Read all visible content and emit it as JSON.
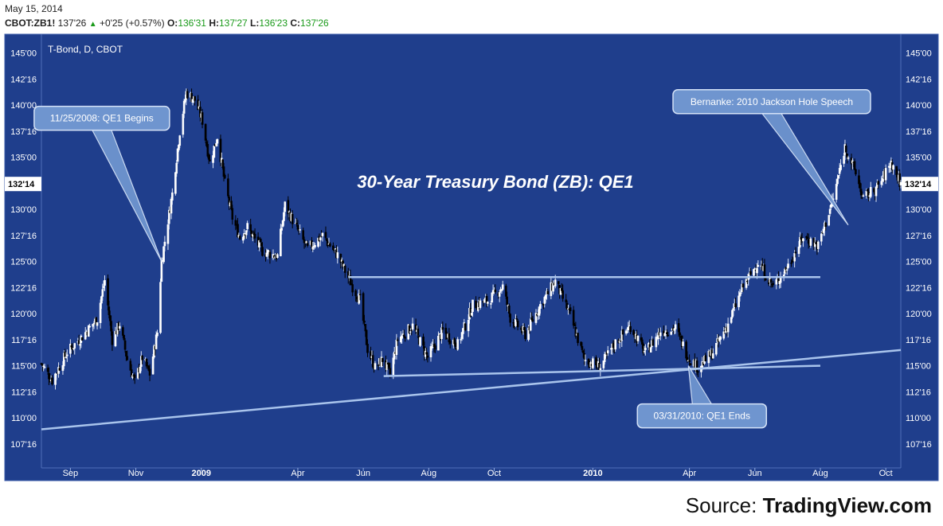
{
  "header": {
    "date": "May 15, 2014",
    "symbol": "CBOT:ZB1!",
    "last": "137'26",
    "change": "+0'25 (+0.57%)",
    "open_label": "O:",
    "open": "136'31",
    "high_label": "H:",
    "high": "137'27",
    "low_label": "L:",
    "low": "136'23",
    "close_label": "C:",
    "close": "137'26"
  },
  "colors": {
    "background": "#1f3e8c",
    "up_candle": "#ffffff",
    "down_candle": "#000000",
    "annotation_line": "#a9c4ec",
    "callout_fill": "#6f95cf",
    "header_up": "#1a9a1a"
  },
  "source": {
    "prefix": "Source: ",
    "brand": "TradingView.com"
  },
  "chart_data": {
    "type": "candlestick",
    "instrument_label": "T-Bond, D, CBOT",
    "title": "30-Year Treasury Bond (ZB): QE1",
    "current_price_label": "132'14",
    "current_price": 132.4375,
    "x": {
      "start": "2008-08-05",
      "end": "2010-10-15"
    },
    "y_range": [
      105.5,
      146.5
    ],
    "y_ticks": [
      {
        "value": 107.5,
        "label": "107'16"
      },
      {
        "value": 110.0,
        "label": "110'00"
      },
      {
        "value": 112.5,
        "label": "112'16"
      },
      {
        "value": 115.0,
        "label": "115'00"
      },
      {
        "value": 117.5,
        "label": "117'16"
      },
      {
        "value": 120.0,
        "label": "120'00"
      },
      {
        "value": 122.5,
        "label": "122'16"
      },
      {
        "value": 125.0,
        "label": "125'00"
      },
      {
        "value": 127.5,
        "label": "127'16"
      },
      {
        "value": 130.0,
        "label": "130'00"
      },
      {
        "value": 132.5,
        "label": "132'16"
      },
      {
        "value": 135.0,
        "label": "135'00"
      },
      {
        "value": 137.5,
        "label": "137'16"
      },
      {
        "value": 140.0,
        "label": "140'00"
      },
      {
        "value": 142.5,
        "label": "142'16"
      },
      {
        "value": 145.0,
        "label": "145'00"
      }
    ],
    "x_ticks": [
      {
        "date": "2008-09-01",
        "label": "Sep",
        "bold": false
      },
      {
        "date": "2008-11-01",
        "label": "Nov",
        "bold": false
      },
      {
        "date": "2009-01-01",
        "label": "2009",
        "bold": true
      },
      {
        "date": "2009-04-01",
        "label": "Apr",
        "bold": false
      },
      {
        "date": "2009-06-01",
        "label": "Jun",
        "bold": false
      },
      {
        "date": "2009-08-01",
        "label": "Aug",
        "bold": false
      },
      {
        "date": "2009-10-01",
        "label": "Oct",
        "bold": false
      },
      {
        "date": "2010-01-01",
        "label": "2010",
        "bold": true
      },
      {
        "date": "2010-04-01",
        "label": "Apr",
        "bold": false
      },
      {
        "date": "2010-06-01",
        "label": "Jun",
        "bold": false
      },
      {
        "date": "2010-08-01",
        "label": "Aug",
        "bold": false
      },
      {
        "date": "2010-10-01",
        "label": "Oct",
        "bold": false
      }
    ],
    "price_path": [
      [
        "2008-08-05",
        115.2
      ],
      [
        "2008-08-15",
        113.6
      ],
      [
        "2008-08-29",
        116.3
      ],
      [
        "2008-09-12",
        117.8
      ],
      [
        "2008-09-26",
        119.5
      ],
      [
        "2008-10-03",
        123.2
      ],
      [
        "2008-10-10",
        117.5
      ],
      [
        "2008-10-17",
        119.0
      ],
      [
        "2008-10-24",
        115.6
      ],
      [
        "2008-10-31",
        113.4
      ],
      [
        "2008-11-07",
        115.8
      ],
      [
        "2008-11-14",
        114.2
      ],
      [
        "2008-11-21",
        118.2
      ],
      [
        "2008-11-25",
        125.0
      ],
      [
        "2008-12-05",
        131.5
      ],
      [
        "2008-12-12",
        137.5
      ],
      [
        "2008-12-18",
        141.2
      ],
      [
        "2008-12-26",
        140.5
      ],
      [
        "2009-01-02",
        138.5
      ],
      [
        "2009-01-09",
        134.5
      ],
      [
        "2009-01-16",
        137.0
      ],
      [
        "2009-01-23",
        132.5
      ],
      [
        "2009-01-30",
        129.2
      ],
      [
        "2009-02-06",
        127.3
      ],
      [
        "2009-02-13",
        128.3
      ],
      [
        "2009-02-27",
        126.0
      ],
      [
        "2009-03-13",
        125.5
      ],
      [
        "2009-03-20",
        130.4
      ],
      [
        "2009-03-27",
        129.0
      ],
      [
        "2009-04-10",
        126.2
      ],
      [
        "2009-04-24",
        127.5
      ],
      [
        "2009-05-08",
        125.6
      ],
      [
        "2009-05-22",
        122.6
      ],
      [
        "2009-05-29",
        121.3
      ],
      [
        "2009-06-05",
        116.6
      ],
      [
        "2009-06-12",
        114.8
      ],
      [
        "2009-06-19",
        115.6
      ],
      [
        "2009-06-26",
        114.2
      ],
      [
        "2009-07-03",
        117.5
      ],
      [
        "2009-07-17",
        118.8
      ],
      [
        "2009-07-31",
        115.8
      ],
      [
        "2009-08-14",
        118.3
      ],
      [
        "2009-08-28",
        117.0
      ],
      [
        "2009-09-11",
        120.8
      ],
      [
        "2009-09-25",
        121.2
      ],
      [
        "2009-10-09",
        122.6
      ],
      [
        "2009-10-16",
        119.6
      ],
      [
        "2009-10-30",
        118.0
      ],
      [
        "2009-11-13",
        120.8
      ],
      [
        "2009-11-27",
        123.1
      ],
      [
        "2009-12-11",
        119.8
      ],
      [
        "2009-12-24",
        115.6
      ],
      [
        "2010-01-08",
        114.9
      ],
      [
        "2010-01-22",
        117.2
      ],
      [
        "2010-02-05",
        118.8
      ],
      [
        "2010-02-19",
        116.2
      ],
      [
        "2010-03-05",
        118.3
      ],
      [
        "2010-03-19",
        118.6
      ],
      [
        "2010-03-31",
        115.8
      ],
      [
        "2010-04-09",
        114.8
      ],
      [
        "2010-04-23",
        116.3
      ],
      [
        "2010-05-07",
        119.0
      ],
      [
        "2010-05-21",
        122.6
      ],
      [
        "2010-06-04",
        124.9
      ],
      [
        "2010-06-18",
        122.6
      ],
      [
        "2010-07-02",
        124.6
      ],
      [
        "2010-07-16",
        127.4
      ],
      [
        "2010-07-30",
        126.5
      ],
      [
        "2010-08-13",
        131.0
      ],
      [
        "2010-08-24",
        136.0
      ],
      [
        "2010-09-03",
        133.5
      ],
      [
        "2010-09-10",
        131.0
      ],
      [
        "2010-09-24",
        132.2
      ],
      [
        "2010-10-06",
        134.5
      ],
      [
        "2010-10-15",
        132.4
      ]
    ],
    "trend_lines": [
      {
        "from": [
          "2008-08-05",
          108.9
        ],
        "to": [
          "2010-10-15",
          116.5
        ]
      },
      {
        "from": [
          "2009-05-18",
          123.5
        ],
        "to": [
          "2010-08-01",
          123.5
        ]
      },
      {
        "from": [
          "2009-06-20",
          114.0
        ],
        "to": [
          "2010-08-01",
          115.0
        ]
      }
    ],
    "annotations": [
      {
        "text": "11/25/2008: QE1 Begins",
        "point": [
          "2008-11-25",
          125.0
        ],
        "box_anchor": "upper-left"
      },
      {
        "text": "03/31/2010: QE1 Ends",
        "point": [
          "2010-03-31",
          115.0
        ],
        "box_anchor": "below"
      },
      {
        "text": "Bernanke: 2010 Jackson Hole Speech",
        "point": [
          "2010-08-27",
          128.5
        ],
        "box_anchor": "upper-right"
      }
    ]
  }
}
